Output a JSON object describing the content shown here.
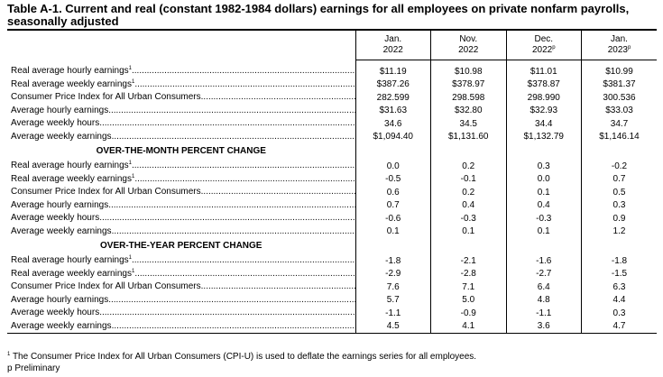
{
  "title": "Table A-1. Current and real (constant 1982-1984 dollars) earnings for all employees on private nonfarm payrolls, seasonally adjusted",
  "columns": [
    {
      "month": "Jan.",
      "year": "2022",
      "prelim": ""
    },
    {
      "month": "Nov.",
      "year": "2022",
      "prelim": ""
    },
    {
      "month": "Dec.",
      "year": "2022",
      "prelim": "p"
    },
    {
      "month": "Jan.",
      "year": "2023",
      "prelim": "p"
    }
  ],
  "sections": [
    {
      "heading": "",
      "rows": [
        {
          "label": "Real average hourly earnings",
          "sup": "1",
          "values": [
            "$11.19",
            "$10.98",
            "$11.01",
            "$10.99"
          ]
        },
        {
          "label": "Real average weekly earnings",
          "sup": "1",
          "values": [
            "$387.26",
            "$378.97",
            "$378.87",
            "$381.37"
          ]
        },
        {
          "label": "Consumer Price Index for All Urban Consumers",
          "sup": "",
          "values": [
            "282.599",
            "298.598",
            "298.990",
            "300.536"
          ]
        },
        {
          "label": "Average hourly earnings",
          "sup": "",
          "values": [
            "$31.63",
            "$32.80",
            "$32.93",
            "$33.03"
          ]
        },
        {
          "label": "Average weekly hours",
          "sup": "",
          "values": [
            "34.6",
            "34.5",
            "34.4",
            "34.7"
          ]
        },
        {
          "label": "Average weekly earnings",
          "sup": "",
          "values": [
            "$1,094.40",
            "$1,131.60",
            "$1,132.79",
            "$1,146.14"
          ]
        }
      ]
    },
    {
      "heading": "OVER-THE-MONTH PERCENT CHANGE",
      "rows": [
        {
          "label": "Real average hourly earnings",
          "sup": "1",
          "values": [
            "0.0",
            "0.2",
            "0.3",
            "-0.2"
          ]
        },
        {
          "label": "Real average weekly earnings",
          "sup": "1",
          "values": [
            "-0.5",
            "-0.1",
            "0.0",
            "0.7"
          ]
        },
        {
          "label": "Consumer Price Index for All Urban Consumers",
          "sup": "",
          "values": [
            "0.6",
            "0.2",
            "0.1",
            "0.5"
          ]
        },
        {
          "label": "Average hourly earnings",
          "sup": "",
          "values": [
            "0.7",
            "0.4",
            "0.4",
            "0.3"
          ]
        },
        {
          "label": "Average weekly hours",
          "sup": "",
          "values": [
            "-0.6",
            "-0.3",
            "-0.3",
            "0.9"
          ]
        },
        {
          "label": "Average weekly earnings",
          "sup": "",
          "values": [
            "0.1",
            "0.1",
            "0.1",
            "1.2"
          ]
        }
      ]
    },
    {
      "heading": "OVER-THE-YEAR PERCENT CHANGE",
      "rows": [
        {
          "label": "Real average hourly earnings",
          "sup": "1",
          "values": [
            "-1.8",
            "-2.1",
            "-1.6",
            "-1.8"
          ]
        },
        {
          "label": "Real average weekly earnings",
          "sup": "1",
          "values": [
            "-2.9",
            "-2.8",
            "-2.7",
            "-1.5"
          ]
        },
        {
          "label": "Consumer Price Index for All Urban Consumers",
          "sup": "",
          "values": [
            "7.6",
            "7.1",
            "6.4",
            "6.3"
          ]
        },
        {
          "label": "Average hourly earnings",
          "sup": "",
          "values": [
            "5.7",
            "5.0",
            "4.8",
            "4.4"
          ]
        },
        {
          "label": "Average weekly hours",
          "sup": "",
          "values": [
            "-1.1",
            "-0.9",
            "-1.1",
            "0.3"
          ]
        },
        {
          "label": "Average weekly earnings",
          "sup": "",
          "values": [
            "4.5",
            "4.1",
            "3.6",
            "4.7"
          ]
        }
      ]
    }
  ],
  "footnotes": [
    {
      "mark": "1",
      "text": "The Consumer Price Index for All Urban Consumers (CPI-U) is used to deflate the earnings series for all employees."
    },
    {
      "mark": "",
      "text": "p Preliminary"
    }
  ]
}
